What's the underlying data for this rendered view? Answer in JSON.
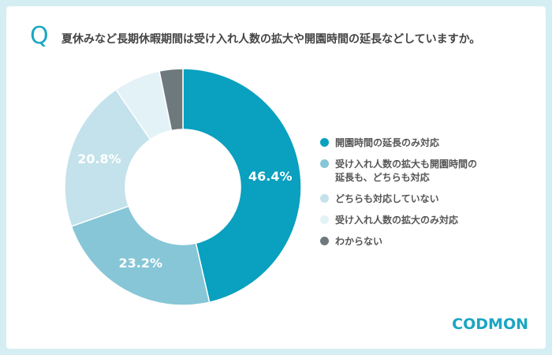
{
  "chart_data": {
    "type": "donut",
    "q_mark": "Q",
    "title": "夏休みなど長期休暇期間は受け入れ人数の拡大や開園時間の延長などしていますか。",
    "categories": [
      "開園時間の延長のみ対応",
      "受け入れ人数の拡大も開園時間の\n延長も、どちらも対応",
      "どちらも対応していない",
      "受け入れ人数の拡大のみ対応",
      "わからない"
    ],
    "values": [
      46.4,
      23.2,
      20.8,
      6.4,
      3.2
    ],
    "value_labels": [
      "46.4%",
      "23.2%",
      "20.8%",
      null,
      null
    ],
    "colors": [
      "#0aa0bf",
      "#86c6d7",
      "#c3e2eb",
      "#e3f2f6",
      "#6e797d"
    ],
    "logo": "CODMON"
  }
}
